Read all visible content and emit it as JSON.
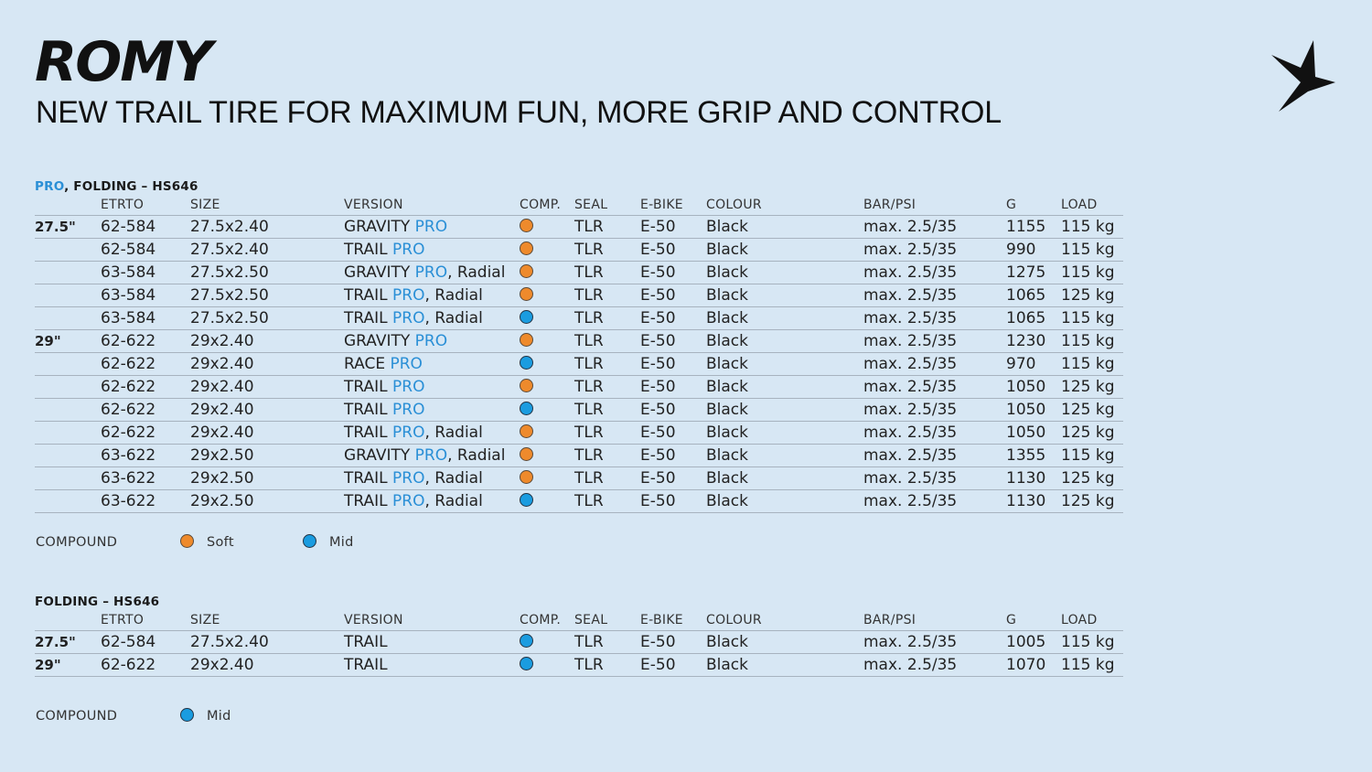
{
  "header": {
    "title": "ROMY",
    "subtitle": "NEW TRAIL TIRE FOR MAXIMUM FUN, MORE GRIP AND CONTROL"
  },
  "colors": {
    "background": "#d7e7f4",
    "pro_accent": "#2a8fd6",
    "soft": "#ee8a2c",
    "mid": "#1a9ce0"
  },
  "columns": [
    "ETRTO",
    "SIZE",
    "VERSION",
    "COMP.",
    "SEAL",
    "E-BIKE",
    "COLOUR",
    "BAR/PSI",
    "G",
    "LOAD"
  ],
  "sections": [
    {
      "title_pro": "PRO",
      "title_rest": ", FOLDING – HS646",
      "rows": [
        {
          "rim": "27.5\"",
          "etrto": "62-584",
          "size": "27.5x2.40",
          "ver": "GRAVITY ",
          "pro": "PRO",
          "suffix": "",
          "comp": "soft",
          "seal": "TLR",
          "ebike": "E-50",
          "colour": "Black",
          "bar": "max. 2.5/35",
          "g": "1155",
          "load": "115 kg"
        },
        {
          "rim": "",
          "etrto": "62-584",
          "size": "27.5x2.40",
          "ver": "TRAIL ",
          "pro": "PRO",
          "suffix": "",
          "comp": "soft",
          "seal": "TLR",
          "ebike": "E-50",
          "colour": "Black",
          "bar": "max. 2.5/35",
          "g": "990",
          "load": "115 kg"
        },
        {
          "rim": "",
          "etrto": "63-584",
          "size": "27.5x2.50",
          "ver": "GRAVITY ",
          "pro": "PRO",
          "suffix": ", Radial",
          "comp": "soft",
          "seal": "TLR",
          "ebike": "E-50",
          "colour": "Black",
          "bar": "max. 2.5/35",
          "g": "1275",
          "load": "115 kg"
        },
        {
          "rim": "",
          "etrto": "63-584",
          "size": "27.5x2.50",
          "ver": "TRAIL ",
          "pro": "PRO",
          "suffix": ", Radial",
          "comp": "soft",
          "seal": "TLR",
          "ebike": "E-50",
          "colour": "Black",
          "bar": "max. 2.5/35",
          "g": "1065",
          "load": "125 kg"
        },
        {
          "rim": "",
          "etrto": "63-584",
          "size": "27.5x2.50",
          "ver": "TRAIL ",
          "pro": "PRO",
          "suffix": ", Radial",
          "comp": "mid",
          "seal": "TLR",
          "ebike": "E-50",
          "colour": "Black",
          "bar": "max. 2.5/35",
          "g": "1065",
          "load": "115 kg"
        },
        {
          "rim": "29\"",
          "etrto": "62-622",
          "size": "29x2.40",
          "ver": "GRAVITY ",
          "pro": "PRO",
          "suffix": "",
          "comp": "soft",
          "seal": "TLR",
          "ebike": "E-50",
          "colour": "Black",
          "bar": "max. 2.5/35",
          "g": "1230",
          "load": "115 kg"
        },
        {
          "rim": "",
          "etrto": "62-622",
          "size": "29x2.40",
          "ver": "RACE ",
          "pro": "PRO",
          "suffix": "",
          "comp": "mid",
          "seal": "TLR",
          "ebike": "E-50",
          "colour": "Black",
          "bar": "max. 2.5/35",
          "g": "970",
          "load": "115 kg"
        },
        {
          "rim": "",
          "etrto": "62-622",
          "size": "29x2.40",
          "ver": "TRAIL ",
          "pro": "PRO",
          "suffix": "",
          "comp": "soft",
          "seal": "TLR",
          "ebike": "E-50",
          "colour": "Black",
          "bar": "max. 2.5/35",
          "g": "1050",
          "load": "125 kg"
        },
        {
          "rim": "",
          "etrto": "62-622",
          "size": "29x2.40",
          "ver": "TRAIL ",
          "pro": "PRO",
          "suffix": "",
          "comp": "mid",
          "seal": "TLR",
          "ebike": "E-50",
          "colour": "Black",
          "bar": "max. 2.5/35",
          "g": "1050",
          "load": "125 kg"
        },
        {
          "rim": "",
          "etrto": "62-622",
          "size": "29x2.40",
          "ver": "TRAIL ",
          "pro": "PRO",
          "suffix": ", Radial",
          "comp": "soft",
          "seal": "TLR",
          "ebike": "E-50",
          "colour": "Black",
          "bar": "max. 2.5/35",
          "g": "1050",
          "load": "125 kg"
        },
        {
          "rim": "",
          "etrto": "63-622",
          "size": "29x2.50",
          "ver": "GRAVITY ",
          "pro": "PRO",
          "suffix": ", Radial",
          "comp": "soft",
          "seal": "TLR",
          "ebike": "E-50",
          "colour": "Black",
          "bar": "max. 2.5/35",
          "g": "1355",
          "load": "115 kg"
        },
        {
          "rim": "",
          "etrto": "63-622",
          "size": "29x2.50",
          "ver": "TRAIL ",
          "pro": "PRO",
          "suffix": ", Radial",
          "comp": "soft",
          "seal": "TLR",
          "ebike": "E-50",
          "colour": "Black",
          "bar": "max. 2.5/35",
          "g": "1130",
          "load": "125 kg"
        },
        {
          "rim": "",
          "etrto": "63-622",
          "size": "29x2.50",
          "ver": "TRAIL ",
          "pro": "PRO",
          "suffix": ", Radial",
          "comp": "mid",
          "seal": "TLR",
          "ebike": "E-50",
          "colour": "Black",
          "bar": "max. 2.5/35",
          "g": "1130",
          "load": "125 kg"
        }
      ],
      "legend": {
        "label": "COMPOUND",
        "items": [
          {
            "type": "soft",
            "label": "Soft"
          },
          {
            "type": "mid",
            "label": "Mid"
          }
        ]
      }
    },
    {
      "title_pro": "",
      "title_rest": "FOLDING – HS646",
      "rows": [
        {
          "rim": "27.5\"",
          "etrto": "62-584",
          "size": "27.5x2.40",
          "ver": "TRAIL",
          "pro": "",
          "suffix": "",
          "comp": "mid",
          "seal": "TLR",
          "ebike": "E-50",
          "colour": "Black",
          "bar": "max. 2.5/35",
          "g": "1005",
          "load": "115 kg"
        },
        {
          "rim": "29\"",
          "etrto": "62-622",
          "size": "29x2.40",
          "ver": "TRAIL",
          "pro": "",
          "suffix": "",
          "comp": "mid",
          "seal": "TLR",
          "ebike": "E-50",
          "colour": "Black",
          "bar": "max. 2.5/35",
          "g": "1070",
          "load": "115 kg"
        }
      ],
      "legend": {
        "label": "COMPOUND",
        "items": [
          {
            "type": "mid",
            "label": "Mid"
          }
        ]
      }
    }
  ]
}
